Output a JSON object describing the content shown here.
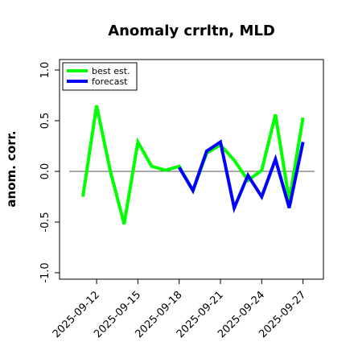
{
  "chart_data": {
    "type": "line",
    "title": "Anomaly crrltn, MLD",
    "ylabel": "anom. corr.",
    "xlabel": "",
    "ylim": [
      -1.0,
      1.0
    ],
    "yticks": [
      -1.0,
      -0.5,
      0.0,
      0.5,
      1.0
    ],
    "ytick_labels": [
      "-1.0",
      "-0.5",
      "0.0",
      "0.5",
      "1.0"
    ],
    "x": [
      "2025-09-11",
      "2025-09-12",
      "2025-09-13",
      "2025-09-14",
      "2025-09-15",
      "2025-09-16",
      "2025-09-17",
      "2025-09-18",
      "2025-09-19",
      "2025-09-20",
      "2025-09-21",
      "2025-09-22",
      "2025-09-23",
      "2025-09-24",
      "2025-09-25",
      "2025-09-26",
      "2025-09-27"
    ],
    "xticks": [
      "2025-09-12",
      "2025-09-15",
      "2025-09-18",
      "2025-09-21",
      "2025-09-24",
      "2025-09-27"
    ],
    "xtick_colors": [
      "#000000",
      "#000000",
      "#228B22",
      "#000000",
      "#000000",
      "#000000"
    ],
    "reference_line": 0.0,
    "grid": false,
    "legend_position": "top-left",
    "series": [
      {
        "name": "best est.",
        "color": "#00ff00",
        "values": [
          -0.25,
          0.65,
          0.0,
          -0.52,
          0.29,
          0.05,
          0.01,
          0.05,
          -0.19,
          0.18,
          0.26,
          0.11,
          -0.09,
          0.01,
          0.56,
          -0.29,
          0.53
        ]
      },
      {
        "name": "forecast",
        "color": "#0000ff",
        "values": [
          null,
          null,
          null,
          null,
          null,
          null,
          null,
          0.04,
          -0.19,
          0.2,
          0.29,
          -0.36,
          -0.04,
          -0.25,
          0.12,
          -0.36,
          0.29
        ]
      }
    ]
  }
}
